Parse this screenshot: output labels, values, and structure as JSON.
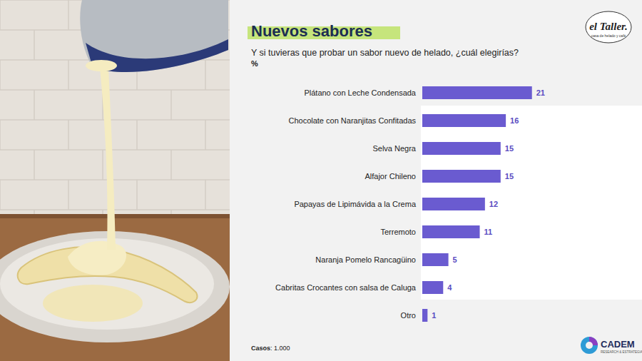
{
  "chart_data": {
    "type": "bar",
    "orientation": "horizontal",
    "title": "Nuevos sabores",
    "subtitle": "Y si tuvieras que probar un sabor nuevo de helado, ¿cuál elegirías?",
    "unit_label": "%",
    "categories": [
      "Plátano con Leche Condensada",
      "Chocolate con Naranjitas Confitadas",
      "Selva Negra",
      "Alfajor Chileno",
      "Papayas de Lipimávida a la Crema",
      "Terremoto",
      "Naranja Pomelo Rancagüino",
      "Cabritas Crocantes con salsa de Caluga",
      "Otro"
    ],
    "values": [
      21,
      16,
      15,
      15,
      12,
      11,
      5,
      4,
      1
    ],
    "color": "#6a5bd0",
    "xlim": [
      0,
      25
    ],
    "grid": false,
    "data_labels": true,
    "tick_labels": "y",
    "note": "Casos: 1.000"
  },
  "logos": {
    "left": "el Taller.",
    "left_tagline": "casa de helado y café",
    "right": "CADEM",
    "right_tagline": "RESEARCH & ESTRATEGIA"
  }
}
